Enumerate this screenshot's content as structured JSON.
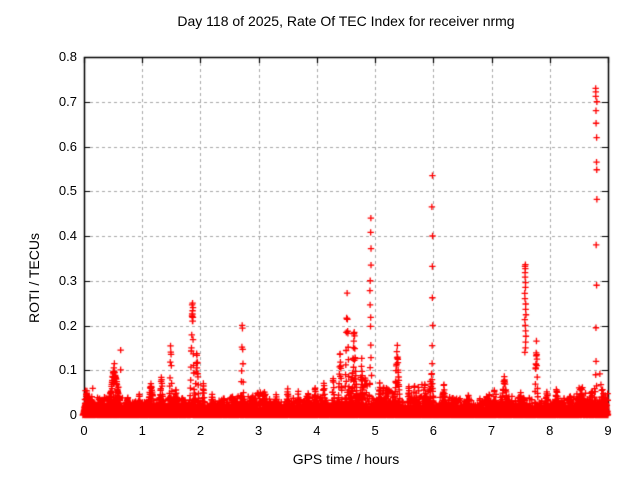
{
  "chart_data": {
    "type": "scatter",
    "title": "Day 118 of 2025, Rate Of TEC Index for receiver nrmg",
    "xlabel": "GPS time / hours",
    "ylabel": "ROTI / TECUs",
    "xlim": [
      0,
      9
    ],
    "ylim": [
      0,
      0.8
    ],
    "xticks": [
      "0",
      "1",
      "2",
      "3",
      "4",
      "5",
      "6",
      "7",
      "8",
      "9"
    ],
    "yticks": [
      "0",
      "0.1",
      "0.2",
      "0.3",
      "0.4",
      "0.5",
      "0.6",
      "0.7",
      "0.8"
    ],
    "grid": true,
    "legend": "none",
    "marker": "plus",
    "colors": {
      "marker": "#ff0000",
      "grid": "#a8a8a8",
      "axis": "#000000",
      "background": "#ffffff"
    },
    "series_description": "ROTI values vs GPS time; dense noise band 0-0.04 TECU with discrete activity spikes",
    "baseline": {
      "description": "continuous dense band of points hugging 0, fuzzy top edge",
      "step": 0.0022,
      "base": 0.016,
      "wobble": 0.009,
      "boost_regions": [
        [
          0,
          0.15,
          0.02
        ],
        [
          2.95,
          3.2,
          0.008
        ],
        [
          4.5,
          4.95,
          0.028
        ],
        [
          5.0,
          5.3,
          0.012
        ],
        [
          5.6,
          5.95,
          0.022
        ],
        [
          6.85,
          7.1,
          0.012
        ],
        [
          8.45,
          8.8,
          0.012
        ],
        [
          8.85,
          9.01,
          0.02
        ]
      ]
    },
    "humps": [
      [
        0.05,
        0.07,
        0.05
      ],
      [
        0.52,
        0.16,
        0.105
      ],
      [
        0.75,
        0.06,
        0.04
      ],
      [
        0.95,
        0.05,
        0.045
      ],
      [
        1.15,
        0.09,
        0.07
      ],
      [
        1.33,
        0.06,
        0.08
      ],
      [
        1.49,
        0.035,
        0.165
      ],
      [
        1.58,
        0.04,
        0.06
      ],
      [
        1.86,
        0.05,
        0.25
      ],
      [
        1.94,
        0.05,
        0.15
      ],
      [
        2.05,
        0.04,
        0.065
      ],
      [
        2.2,
        0.04,
        0.045
      ],
      [
        2.4,
        0.05,
        0.04
      ],
      [
        2.55,
        0.04,
        0.045
      ],
      [
        2.72,
        0.03,
        0.21
      ],
      [
        2.9,
        0.04,
        0.04
      ],
      [
        3.1,
        0.05,
        0.05
      ],
      [
        3.3,
        0.05,
        0.045
      ],
      [
        3.5,
        0.05,
        0.055
      ],
      [
        3.68,
        0.04,
        0.05
      ],
      [
        3.85,
        0.05,
        0.05
      ],
      [
        3.97,
        0.04,
        0.065
      ],
      [
        4.12,
        0.05,
        0.07
      ],
      [
        4.28,
        0.04,
        0.08
      ],
      [
        4.4,
        0.05,
        0.145
      ],
      [
        4.52,
        0.05,
        0.27
      ],
      [
        4.64,
        0.07,
        0.19
      ],
      [
        4.77,
        0.04,
        0.115
      ],
      [
        5.08,
        0.06,
        0.07
      ],
      [
        5.22,
        0.04,
        0.06
      ],
      [
        5.38,
        0.07,
        0.15
      ],
      [
        5.58,
        0.04,
        0.065
      ],
      [
        5.97,
        0.06,
        0.09
      ],
      [
        6.18,
        0.06,
        0.065
      ],
      [
        6.4,
        0.04,
        0.04
      ],
      [
        6.6,
        0.05,
        0.045
      ],
      [
        6.8,
        0.04,
        0.035
      ],
      [
        7.22,
        0.1,
        0.078
      ],
      [
        7.5,
        0.04,
        0.05
      ],
      [
        7.77,
        0.035,
        0.18
      ],
      [
        7.95,
        0.05,
        0.055
      ],
      [
        8.12,
        0.07,
        0.06
      ],
      [
        8.35,
        0.05,
        0.045
      ],
      [
        8.55,
        0.06,
        0.05
      ],
      [
        8.95,
        0.04,
        0.045
      ]
    ],
    "columns": [
      {
        "t": 1.87,
        "jitter": 0.015,
        "values": [
          0.25,
          0.246,
          0.24,
          0.233,
          0.226,
          0.218,
          0.21
        ]
      },
      {
        "t": 4.92,
        "jitter": 0.012,
        "values": [
          0.44,
          0.408,
          0.372,
          0.335,
          0.3,
          0.278,
          0.246,
          0.218,
          0.198,
          0.156,
          0.128,
          0.106
        ]
      },
      {
        "t": 5.98,
        "jitter": 0.01,
        "values": [
          0.535,
          0.465,
          0.4,
          0.332,
          0.262,
          0.2,
          0.155,
          0.115
        ]
      },
      {
        "t": 7.58,
        "jitter": 0.012,
        "values": [
          0.336,
          0.332,
          0.327,
          0.318,
          0.308,
          0.296,
          0.285,
          0.272,
          0.26,
          0.248,
          0.236,
          0.224,
          0.213,
          0.2,
          0.188,
          0.176,
          0.163,
          0.15,
          0.14
        ]
      },
      {
        "t": 8.8,
        "jitter": 0.012,
        "values": [
          0.73,
          0.722,
          0.712,
          0.7,
          0.68,
          0.652,
          0.62,
          0.565,
          0.548,
          0.482,
          0.38,
          0.29,
          0.195,
          0.12,
          0.09,
          0.065
        ]
      }
    ],
    "points": [
      [
        0.63,
        0.145
      ],
      [
        0.63,
        0.101
      ],
      [
        0.59,
        0.062
      ],
      [
        8.86,
        0.092
      ]
    ]
  }
}
